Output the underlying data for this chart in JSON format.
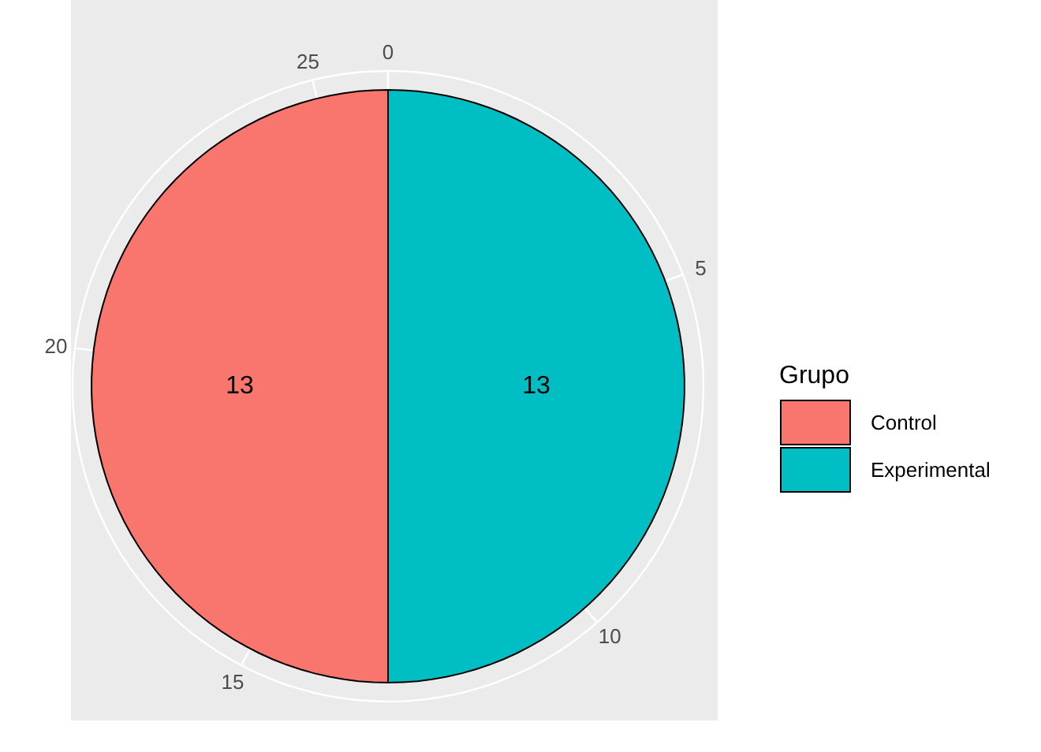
{
  "chart_data": {
    "type": "pie",
    "categories": [
      "Control",
      "Experimental"
    ],
    "values": [
      13,
      13
    ],
    "colors": [
      "#f8766d",
      "#00bfc4"
    ],
    "data_labels": true,
    "legend_title": "Grupo",
    "legend": "right",
    "grid": true,
    "annotations": [
      "0",
      "5",
      "10",
      "15",
      "20",
      "25"
    ]
  }
}
